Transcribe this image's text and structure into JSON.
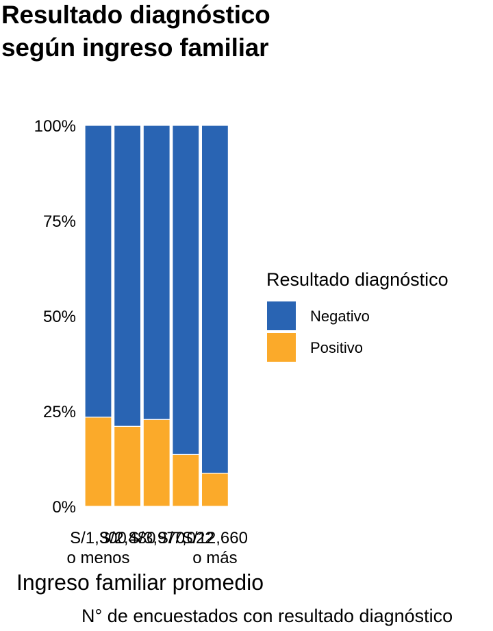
{
  "chart_data": {
    "type": "bar",
    "stacked": "percent",
    "title": [
      "Resultado diagnóstico",
      "según ingreso familiar"
    ],
    "xlabel": "Ingreso familiar promedio",
    "ylabel": "",
    "caption": "N° de encuestados con resultado diagnóstico",
    "categories": [
      "S/1,300\no menos",
      "S/2,480",
      "S/3,970",
      "S/7,022",
      "S/12,660\no más"
    ],
    "ylim": [
      0,
      1
    ],
    "yticks": [
      "0%",
      "25%",
      "50%",
      "75%",
      "100%"
    ],
    "legend_title": "Resultado diagnóstico",
    "legend_position": "right",
    "series": [
      {
        "name": "Negativo",
        "color": "#2964B3",
        "values": [
          0.766,
          0.79,
          0.772,
          0.864,
          0.913
        ]
      },
      {
        "name": "Positivo",
        "color": "#FBAA2A",
        "values": [
          0.234,
          0.21,
          0.228,
          0.136,
          0.087
        ]
      }
    ],
    "grid": false
  }
}
